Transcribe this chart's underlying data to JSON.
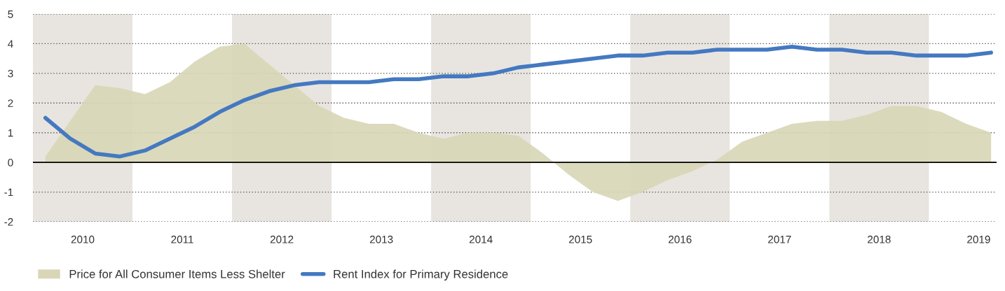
{
  "chart_data": {
    "type": "line",
    "x": [
      2010.125,
      2010.375,
      2010.625,
      2010.875,
      2011.125,
      2011.375,
      2011.625,
      2011.875,
      2012.125,
      2012.375,
      2012.625,
      2012.875,
      2013.125,
      2013.375,
      2013.625,
      2013.875,
      2014.125,
      2014.375,
      2014.625,
      2014.875,
      2015.125,
      2015.375,
      2015.625,
      2015.875,
      2016.125,
      2016.375,
      2016.625,
      2016.875,
      2017.125,
      2017.375,
      2017.625,
      2017.875,
      2018.125,
      2018.375,
      2018.625,
      2018.875,
      2019.125,
      2019.375,
      2019.625
    ],
    "series": [
      {
        "name": "Price for All Consumer Items Less Shelter",
        "type": "area",
        "color": "#d8d6b6",
        "values": [
          0.2,
          1.4,
          2.6,
          2.5,
          2.3,
          2.7,
          3.4,
          3.9,
          4.0,
          3.3,
          2.6,
          1.9,
          1.5,
          1.3,
          1.3,
          1.0,
          0.8,
          1.0,
          1.0,
          0.9,
          0.3,
          -0.4,
          -1.0,
          -1.3,
          -1.0,
          -0.6,
          -0.3,
          0.1,
          0.7,
          1.0,
          1.3,
          1.4,
          1.4,
          1.6,
          1.9,
          1.9,
          1.7,
          1.3,
          1.0
        ]
      },
      {
        "name": "Rent Index for Primary Residence",
        "color": "#4479c1",
        "values": [
          1.5,
          0.8,
          0.3,
          0.2,
          0.4,
          0.8,
          1.2,
          1.7,
          2.1,
          2.4,
          2.6,
          2.7,
          2.7,
          2.7,
          2.8,
          2.8,
          2.9,
          2.9,
          3.0,
          3.2,
          3.3,
          3.4,
          3.5,
          3.6,
          3.6,
          3.7,
          3.7,
          3.8,
          3.8,
          3.8,
          3.9,
          3.8,
          3.8,
          3.7,
          3.7,
          3.6,
          3.6,
          3.6,
          3.7
        ]
      }
    ],
    "xlim": [
      2010.0,
      2019.68
    ],
    "xticks": [
      {
        "value": 2010.5,
        "label": "2010"
      },
      {
        "value": 2011.5,
        "label": "2011"
      },
      {
        "value": 2012.5,
        "label": "2012"
      },
      {
        "value": 2013.5,
        "label": "2013"
      },
      {
        "value": 2014.5,
        "label": "2014"
      },
      {
        "value": 2015.5,
        "label": "2015"
      },
      {
        "value": 2016.5,
        "label": "2016"
      },
      {
        "value": 2017.5,
        "label": "2017"
      },
      {
        "value": 2018.5,
        "label": "2018"
      },
      {
        "value": 2019.5,
        "label": "2019"
      }
    ],
    "ylim": [
      -2,
      5
    ],
    "yticks": [
      -2,
      -1,
      0,
      1,
      2,
      3,
      4,
      5
    ],
    "bands": [
      {
        "axis": "x",
        "from": 2010,
        "to": 2011,
        "color": "#e8e5e0"
      },
      {
        "axis": "x",
        "from": 2012,
        "to": 2013,
        "color": "#e8e5e0"
      },
      {
        "axis": "x",
        "from": 2014,
        "to": 2015,
        "color": "#e8e5e0"
      },
      {
        "axis": "x",
        "from": 2016,
        "to": 2017,
        "color": "#e8e5e0"
      },
      {
        "axis": "x",
        "from": 2018,
        "to": 2019,
        "color": "#e8e5e0"
      }
    ],
    "ref_lines": [
      {
        "axis": "y",
        "value": 0,
        "color": "#000000",
        "line_style": "solid"
      }
    ],
    "grid": "y",
    "legend": "bottom left",
    "marker": "none",
    "line_style": "solid"
  }
}
